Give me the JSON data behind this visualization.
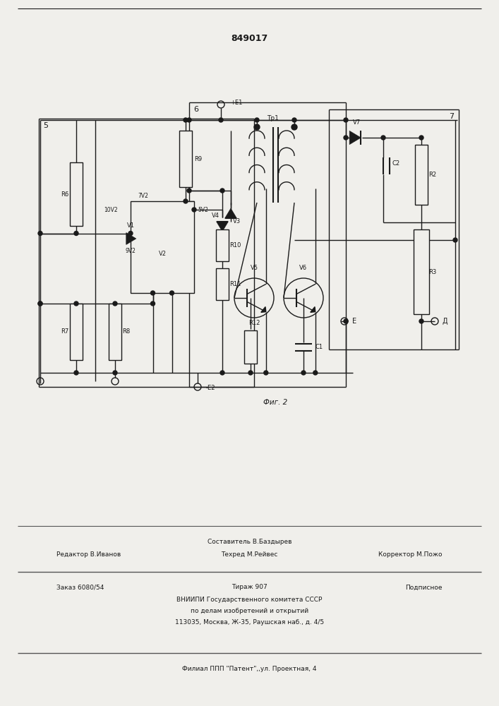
{
  "title": "849017",
  "bg_color": "#f0efeb",
  "lc": "#1a1a1a",
  "lw": 1.0,
  "footer": {
    "sestavitel": "Составитель В.Баздырев",
    "redaktor": "Редактор В.Иванов",
    "tehred": "Техред М.Рейвес",
    "korrektor": "Корректор М.Пожо",
    "zakaz": "Заказ 6080/54",
    "tirazh": "Тираж 907",
    "podpisnoe": "Подписное",
    "vniip1": "ВНИИПИ Государственного комитета СССР",
    "vniip2": "по делам изобретений и открытий",
    "vniip3": "113035, Москва, Ж-35, Раушская наб., д. 4/5",
    "filial": "Филиал ППП \"Патент\",,ул. Проектная, 4"
  }
}
